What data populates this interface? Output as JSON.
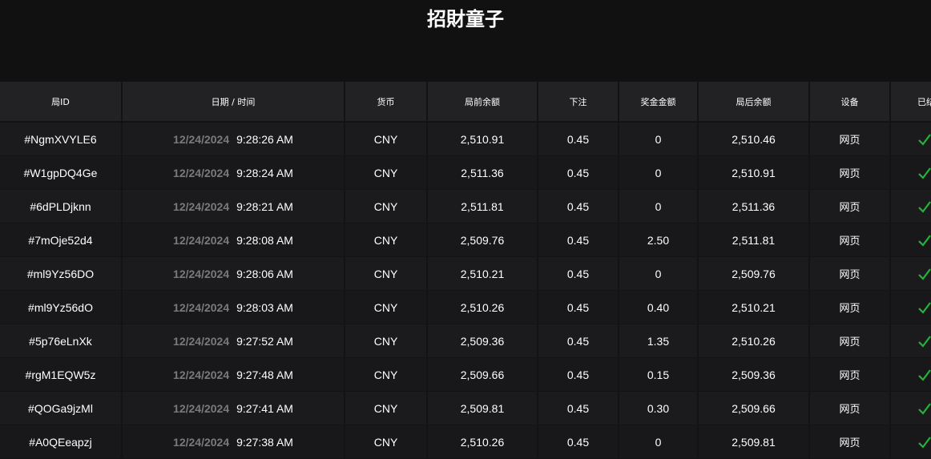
{
  "title": "招財童子",
  "columns": [
    "局ID",
    "日期 / 时间",
    "货币",
    "局前余额",
    "下注",
    "奖金金额",
    "局后余额",
    "设备",
    "已结束"
  ],
  "accent": "#22b43a",
  "rows": [
    {
      "id": "#NgmXVYLE6",
      "date": "12/24/2024",
      "time": "9:28:26 AM",
      "currency": "CNY",
      "before": "2,510.91",
      "bet": "0.45",
      "win": "0",
      "after": "2,510.46",
      "device": "网页",
      "status_icon": "check-icon"
    },
    {
      "id": "#W1gpDQ4Ge",
      "date": "12/24/2024",
      "time": "9:28:24 AM",
      "currency": "CNY",
      "before": "2,511.36",
      "bet": "0.45",
      "win": "0",
      "after": "2,510.91",
      "device": "网页",
      "status_icon": "check-icon"
    },
    {
      "id": "#6dPLDjknn",
      "date": "12/24/2024",
      "time": "9:28:21 AM",
      "currency": "CNY",
      "before": "2,511.81",
      "bet": "0.45",
      "win": "0",
      "after": "2,511.36",
      "device": "网页",
      "status_icon": "check-icon"
    },
    {
      "id": "#7mOje52d4",
      "date": "12/24/2024",
      "time": "9:28:08 AM",
      "currency": "CNY",
      "before": "2,509.76",
      "bet": "0.45",
      "win": "2.50",
      "after": "2,511.81",
      "device": "网页",
      "status_icon": "check-icon"
    },
    {
      "id": "#ml9Yz56DO",
      "date": "12/24/2024",
      "time": "9:28:06 AM",
      "currency": "CNY",
      "before": "2,510.21",
      "bet": "0.45",
      "win": "0",
      "after": "2,509.76",
      "device": "网页",
      "status_icon": "check-icon"
    },
    {
      "id": "#ml9Yz56dO",
      "date": "12/24/2024",
      "time": "9:28:03 AM",
      "currency": "CNY",
      "before": "2,510.26",
      "bet": "0.45",
      "win": "0.40",
      "after": "2,510.21",
      "device": "网页",
      "status_icon": "check-icon"
    },
    {
      "id": "#5p76eLnXk",
      "date": "12/24/2024",
      "time": "9:27:52 AM",
      "currency": "CNY",
      "before": "2,509.36",
      "bet": "0.45",
      "win": "1.35",
      "after": "2,510.26",
      "device": "网页",
      "status_icon": "check-icon"
    },
    {
      "id": "#rgM1EQW5z",
      "date": "12/24/2024",
      "time": "9:27:48 AM",
      "currency": "CNY",
      "before": "2,509.66",
      "bet": "0.45",
      "win": "0.15",
      "after": "2,509.36",
      "device": "网页",
      "status_icon": "check-icon"
    },
    {
      "id": "#QOGa9jzMl",
      "date": "12/24/2024",
      "time": "9:27:41 AM",
      "currency": "CNY",
      "before": "2,509.81",
      "bet": "0.45",
      "win": "0.30",
      "after": "2,509.66",
      "device": "网页",
      "status_icon": "check-icon"
    },
    {
      "id": "#A0QEeapzj",
      "date": "12/24/2024",
      "time": "9:27:38 AM",
      "currency": "CNY",
      "before": "2,510.26",
      "bet": "0.45",
      "win": "0",
      "after": "2,509.81",
      "device": "网页",
      "status_icon": "check-icon"
    }
  ]
}
